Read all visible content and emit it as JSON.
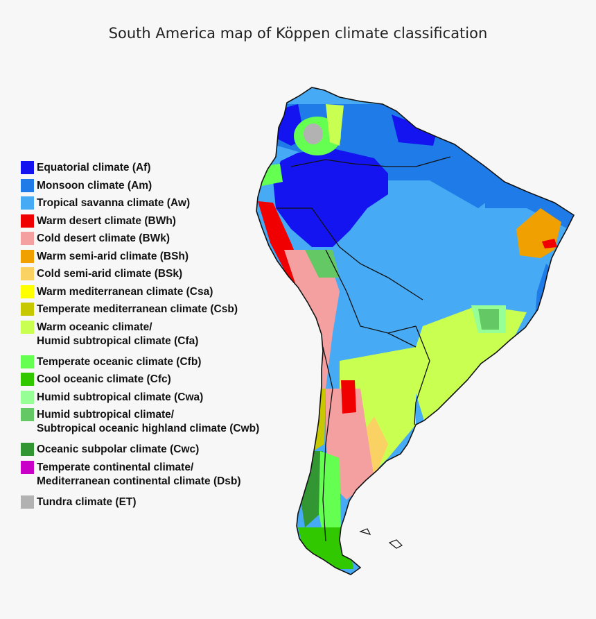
{
  "title": "South America map of Köppen climate classification",
  "legend": [
    {
      "lines": [
        "Equatorial climate (Af)"
      ],
      "color": "#1414f0"
    },
    {
      "lines": [
        "Monsoon climate (Am)"
      ],
      "color": "#1e7be8"
    },
    {
      "lines": [
        "Tropical savanna climate (Aw)"
      ],
      "color": "#46aaf5"
    },
    {
      "lines": [
        "Warm desert climate (BWh)"
      ],
      "color": "#f00000"
    },
    {
      "lines": [
        "Cold desert climate (BWk)"
      ],
      "color": "#f5a0a0"
    },
    {
      "lines": [
        "Warm semi-arid climate (BSh)"
      ],
      "color": "#f0a000"
    },
    {
      "lines": [
        "Cold semi-arid climate (BSk)"
      ],
      "color": "#fad264"
    },
    {
      "lines": [
        "Warm mediterranean climate (Csa)"
      ],
      "color": "#ffff00"
    },
    {
      "lines": [
        "Temperate mediterranean climate (Csb)"
      ],
      "color": "#c8c800"
    },
    {
      "lines": [
        "Warm oceanic climate/",
        "Humid subtropical climate (Cfa)"
      ],
      "color": "#c8ff50"
    },
    {
      "lines": [
        "Temperate oceanic climate (Cfb)"
      ],
      "color": "#64ff50"
    },
    {
      "lines": [
        "Cool oceanic climate (Cfc)"
      ],
      "color": "#32c800"
    },
    {
      "lines": [
        "Humid subtropical climate (Cwa)"
      ],
      "color": "#96ff96"
    },
    {
      "lines": [
        "Humid subtropical climate/",
        "Subtropical oceanic highland climate (Cwb)"
      ],
      "color": "#64c864"
    },
    {
      "lines": [
        "Oceanic subpolar climate (Cwc)"
      ],
      "color": "#329632"
    },
    {
      "lines": [
        "Temperate continental climate/",
        "Mediterranean continental climate (Dsb)"
      ],
      "color": "#c800c8"
    },
    {
      "lines": [
        "Tundra climate (ET)"
      ],
      "color": "#b2b2b2"
    }
  ]
}
